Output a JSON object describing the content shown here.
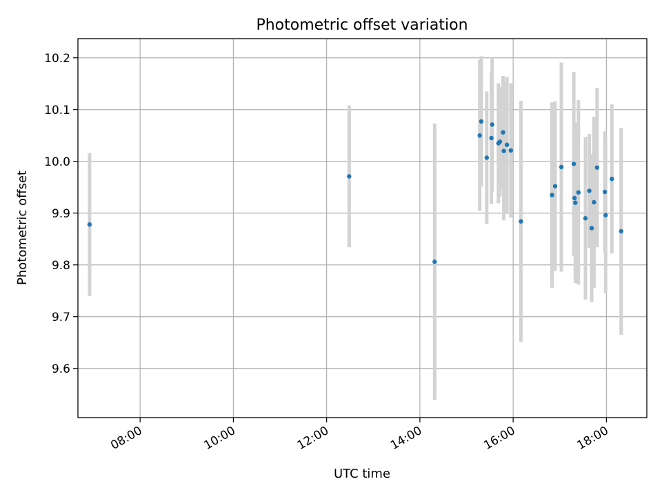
{
  "chart_data": {
    "type": "scatter",
    "title": "Photometric offset variation",
    "xlabel": "UTC time",
    "ylabel": "Photometric offset",
    "x_axis": "time",
    "xlim": [
      "06:40",
      "18:52"
    ],
    "ylim": [
      9.505,
      10.237
    ],
    "grid": true,
    "xticks": [
      "08:00",
      "10:00",
      "12:00",
      "14:00",
      "16:00",
      "18:00"
    ],
    "yticks": [
      9.6,
      9.7,
      9.8,
      9.9,
      10.0,
      10.1,
      10.2
    ],
    "colors": {
      "point": "#1f77b4",
      "errorbar": "#d3d3d3",
      "grid": "#b0b0b0"
    },
    "points": [
      {
        "x": "06:55",
        "y": 9.878,
        "err": 0.138
      },
      {
        "x": "12:29",
        "y": 9.971,
        "err": 0.137
      },
      {
        "x": "14:19",
        "y": 9.806,
        "err": 0.267
      },
      {
        "x": "15:17",
        "y": 10.05,
        "err": 0.146
      },
      {
        "x": "15:19",
        "y": 10.077,
        "err": 0.126
      },
      {
        "x": "15:26",
        "y": 10.007,
        "err": 0.128
      },
      {
        "x": "15:32",
        "y": 10.045,
        "err": 0.127
      },
      {
        "x": "15:33",
        "y": 10.071,
        "err": 0.129
      },
      {
        "x": "15:41",
        "y": 10.035,
        "err": 0.116
      },
      {
        "x": "15:43",
        "y": 10.038,
        "err": 0.106
      },
      {
        "x": "15:47",
        "y": 10.056,
        "err": 0.109
      },
      {
        "x": "15:48",
        "y": 10.02,
        "err": 0.134
      },
      {
        "x": "15:52",
        "y": 10.032,
        "err": 0.131
      },
      {
        "x": "15:57",
        "y": 10.021,
        "err": 0.13
      },
      {
        "x": "16:10",
        "y": 9.884,
        "err": 0.233
      },
      {
        "x": "16:50",
        "y": 9.935,
        "err": 0.179
      },
      {
        "x": "16:54",
        "y": 9.952,
        "err": 0.164
      },
      {
        "x": "17:02",
        "y": 9.989,
        "err": 0.202
      },
      {
        "x": "17:18",
        "y": 9.995,
        "err": 0.178
      },
      {
        "x": "17:19",
        "y": 9.929,
        "err": 0.11
      },
      {
        "x": "17:20",
        "y": 9.92,
        "err": 0.155
      },
      {
        "x": "17:24",
        "y": 9.94,
        "err": 0.178
      },
      {
        "x": "17:33",
        "y": 9.89,
        "err": 0.157
      },
      {
        "x": "17:38",
        "y": 9.943,
        "err": 0.11
      },
      {
        "x": "17:41",
        "y": 9.871,
        "err": 0.143
      },
      {
        "x": "17:44",
        "y": 9.921,
        "err": 0.165
      },
      {
        "x": "17:48",
        "y": 9.988,
        "err": 0.154
      },
      {
        "x": "17:58",
        "y": 9.941,
        "err": 0.117
      },
      {
        "x": "17:59",
        "y": 9.896,
        "err": 0.151
      },
      {
        "x": "18:07",
        "y": 9.966,
        "err": 0.144
      },
      {
        "x": "18:19",
        "y": 9.865,
        "err": 0.2
      }
    ]
  }
}
